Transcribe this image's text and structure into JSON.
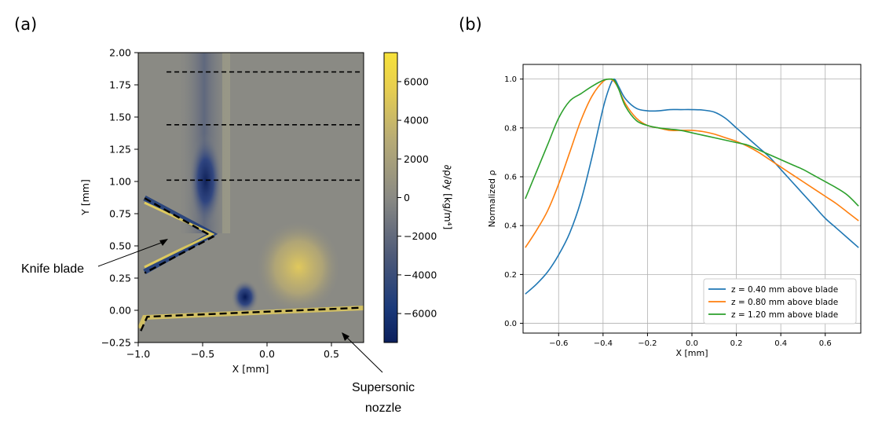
{
  "panel_labels": [
    "(a)",
    "(b)"
  ],
  "annotations": {
    "knife": "Knife blade",
    "nozzle_line1": "Supersonic",
    "nozzle_line2": "nozzle"
  },
  "colors": {
    "blue": "#1f77b4",
    "orange": "#ff7f0e",
    "green": "#2ca02c",
    "cmap_low": "#0b1f5c",
    "cmap_mid": "#8a8a84",
    "cmap_high": "#f7e23a"
  },
  "chart_data": [
    {
      "type": "heatmap",
      "xlabel": "X [mm]",
      "ylabel": "Y [mm]",
      "xlim": [
        -1.0,
        0.75
      ],
      "ylim": [
        -0.25,
        2.0
      ],
      "x_ticks": [
        -1.0,
        -0.5,
        0.0,
        0.5
      ],
      "x_tick_labels": [
        "−1.0",
        "−0.5",
        "0.0",
        "0.5"
      ],
      "y_ticks": [
        -0.25,
        0.0,
        0.25,
        0.5,
        0.75,
        1.0,
        1.25,
        1.5,
        1.75,
        2.0
      ],
      "y_tick_labels": [
        "−0.25",
        "0.00",
        "0.25",
        "0.50",
        "0.75",
        "1.00",
        "1.25",
        "1.50",
        "1.75",
        "2.00"
      ],
      "colorbar": {
        "label": "∂ρ/∂y [kg/m⁴]",
        "range": [
          -7500,
          7500
        ],
        "ticks": [
          6000,
          4000,
          2000,
          0,
          -2000,
          -4000,
          -6000
        ],
        "tick_labels": [
          "6000",
          "4000",
          "2000",
          "0",
          "−2000",
          "−4000",
          "−6000"
        ]
      },
      "dashed_lines_y": [
        1.85,
        1.44,
        1.01
      ],
      "dashed_lines_x_range": [
        -0.78,
        0.72
      ],
      "knife_blade": [
        [
          -0.95,
          0.87
        ],
        [
          -0.42,
          0.57
        ],
        [
          -0.95,
          0.29
        ]
      ],
      "nozzle": [
        [
          -0.98,
          -0.16
        ],
        [
          -0.93,
          -0.05
        ],
        [
          0.73,
          0.02
        ]
      ]
    },
    {
      "type": "line",
      "xlabel": "X [mm]",
      "ylabel": "Normalized ρ",
      "xlim": [
        -0.76,
        0.76
      ],
      "ylim": [
        -0.04,
        1.06
      ],
      "grid": true,
      "legend_position": "lower-right",
      "x_ticks": [
        -0.6,
        -0.4,
        -0.2,
        0.0,
        0.2,
        0.4,
        0.6
      ],
      "x_tick_labels": [
        "−0.6",
        "−0.4",
        "−0.2",
        "0.0",
        "0.2",
        "0.4",
        "0.6"
      ],
      "y_ticks": [
        0.0,
        0.2,
        0.4,
        0.6,
        0.8,
        1.0
      ],
      "y_tick_labels": [
        "0.0",
        "0.2",
        "0.4",
        "0.6",
        "0.8",
        "1.0"
      ],
      "series": [
        {
          "name": "z = 0.40 mm above blade",
          "color": "#1f77b4",
          "x": [
            -0.75,
            -0.7,
            -0.65,
            -0.6,
            -0.55,
            -0.5,
            -0.45,
            -0.4,
            -0.37,
            -0.35,
            -0.33,
            -0.3,
            -0.25,
            -0.2,
            -0.15,
            -0.1,
            -0.05,
            0.0,
            0.05,
            0.1,
            0.15,
            0.2,
            0.25,
            0.3,
            0.35,
            0.4,
            0.45,
            0.5,
            0.55,
            0.6,
            0.65,
            0.7,
            0.75
          ],
          "y": [
            0.12,
            0.16,
            0.21,
            0.28,
            0.37,
            0.5,
            0.68,
            0.88,
            0.97,
            1.0,
            0.97,
            0.92,
            0.88,
            0.87,
            0.87,
            0.875,
            0.875,
            0.875,
            0.873,
            0.865,
            0.84,
            0.8,
            0.76,
            0.72,
            0.68,
            0.63,
            0.58,
            0.53,
            0.48,
            0.43,
            0.39,
            0.35,
            0.31
          ]
        },
        {
          "name": "z = 0.80 mm above blade",
          "color": "#ff7f0e",
          "x": [
            -0.75,
            -0.7,
            -0.65,
            -0.6,
            -0.55,
            -0.5,
            -0.45,
            -0.4,
            -0.37,
            -0.35,
            -0.33,
            -0.3,
            -0.25,
            -0.2,
            -0.15,
            -0.1,
            -0.05,
            0.0,
            0.05,
            0.1,
            0.15,
            0.2,
            0.25,
            0.3,
            0.35,
            0.4,
            0.45,
            0.5,
            0.55,
            0.6,
            0.65,
            0.7,
            0.75
          ],
          "y": [
            0.31,
            0.38,
            0.46,
            0.57,
            0.7,
            0.83,
            0.93,
            0.99,
            1.0,
            0.99,
            0.96,
            0.9,
            0.84,
            0.81,
            0.8,
            0.79,
            0.79,
            0.79,
            0.785,
            0.775,
            0.76,
            0.745,
            0.725,
            0.7,
            0.67,
            0.64,
            0.61,
            0.58,
            0.55,
            0.52,
            0.49,
            0.455,
            0.42
          ]
        },
        {
          "name": "z = 1.20 mm above blade",
          "color": "#2ca02c",
          "x": [
            -0.75,
            -0.7,
            -0.65,
            -0.6,
            -0.55,
            -0.5,
            -0.45,
            -0.4,
            -0.37,
            -0.35,
            -0.33,
            -0.3,
            -0.25,
            -0.2,
            -0.15,
            -0.1,
            -0.05,
            0.0,
            0.05,
            0.1,
            0.15,
            0.2,
            0.25,
            0.3,
            0.35,
            0.4,
            0.45,
            0.5,
            0.55,
            0.6,
            0.65,
            0.7,
            0.75
          ],
          "y": [
            0.51,
            0.62,
            0.73,
            0.84,
            0.91,
            0.94,
            0.97,
            0.995,
            1.0,
            0.995,
            0.96,
            0.89,
            0.83,
            0.81,
            0.8,
            0.795,
            0.79,
            0.78,
            0.77,
            0.76,
            0.75,
            0.74,
            0.73,
            0.71,
            0.69,
            0.67,
            0.65,
            0.63,
            0.605,
            0.58,
            0.555,
            0.525,
            0.48
          ]
        }
      ]
    }
  ]
}
